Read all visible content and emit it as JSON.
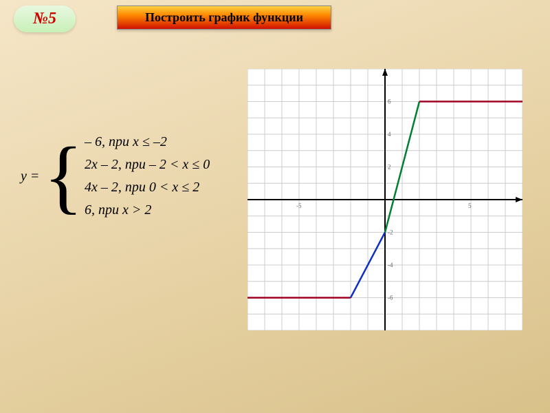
{
  "badge": {
    "label": "№5"
  },
  "title": "Построить график  функции",
  "formula": {
    "lhs": "y =",
    "pieces": [
      "– 6,   при  x ≤ –2",
      "2x – 2, при  – 2 < x ≤ 0",
      "4x – 2, при  0 < x ≤ 2",
      "6, при  x > 2"
    ]
  },
  "chart": {
    "type": "line",
    "background_color": "#ffffff",
    "grid_color": "#cccccc",
    "axis_color": "#000000",
    "xlim": [
      -8,
      8
    ],
    "ylim": [
      -8,
      8
    ],
    "xtick_step": 1,
    "ytick_step": 1,
    "y_labels": [
      {
        "v": 6,
        "text": "6"
      },
      {
        "v": 4,
        "text": "4"
      },
      {
        "v": 2,
        "text": "2"
      },
      {
        "v": -2,
        "text": "-2"
      },
      {
        "v": -4,
        "text": "-4"
      },
      {
        "v": -6,
        "text": "-6"
      }
    ],
    "x_labels": [
      {
        "v": -5,
        "text": "-5"
      },
      {
        "v": 5,
        "text": "5"
      }
    ],
    "segments": [
      {
        "points": [
          [
            -8,
            -6
          ],
          [
            -2,
            -6
          ]
        ],
        "color": "#a00020",
        "width": 2.5
      },
      {
        "points": [
          [
            -2,
            -6
          ],
          [
            0,
            -2
          ]
        ],
        "color": "#1030c0",
        "width": 2.5
      },
      {
        "points": [
          [
            0,
            -2
          ],
          [
            2,
            6
          ]
        ],
        "color": "#008030",
        "width": 2.5
      },
      {
        "points": [
          [
            2,
            6
          ],
          [
            8,
            6
          ]
        ],
        "color": "#a00020",
        "width": 2.5
      }
    ],
    "label_fontsize": 9,
    "label_color": "#666666"
  }
}
